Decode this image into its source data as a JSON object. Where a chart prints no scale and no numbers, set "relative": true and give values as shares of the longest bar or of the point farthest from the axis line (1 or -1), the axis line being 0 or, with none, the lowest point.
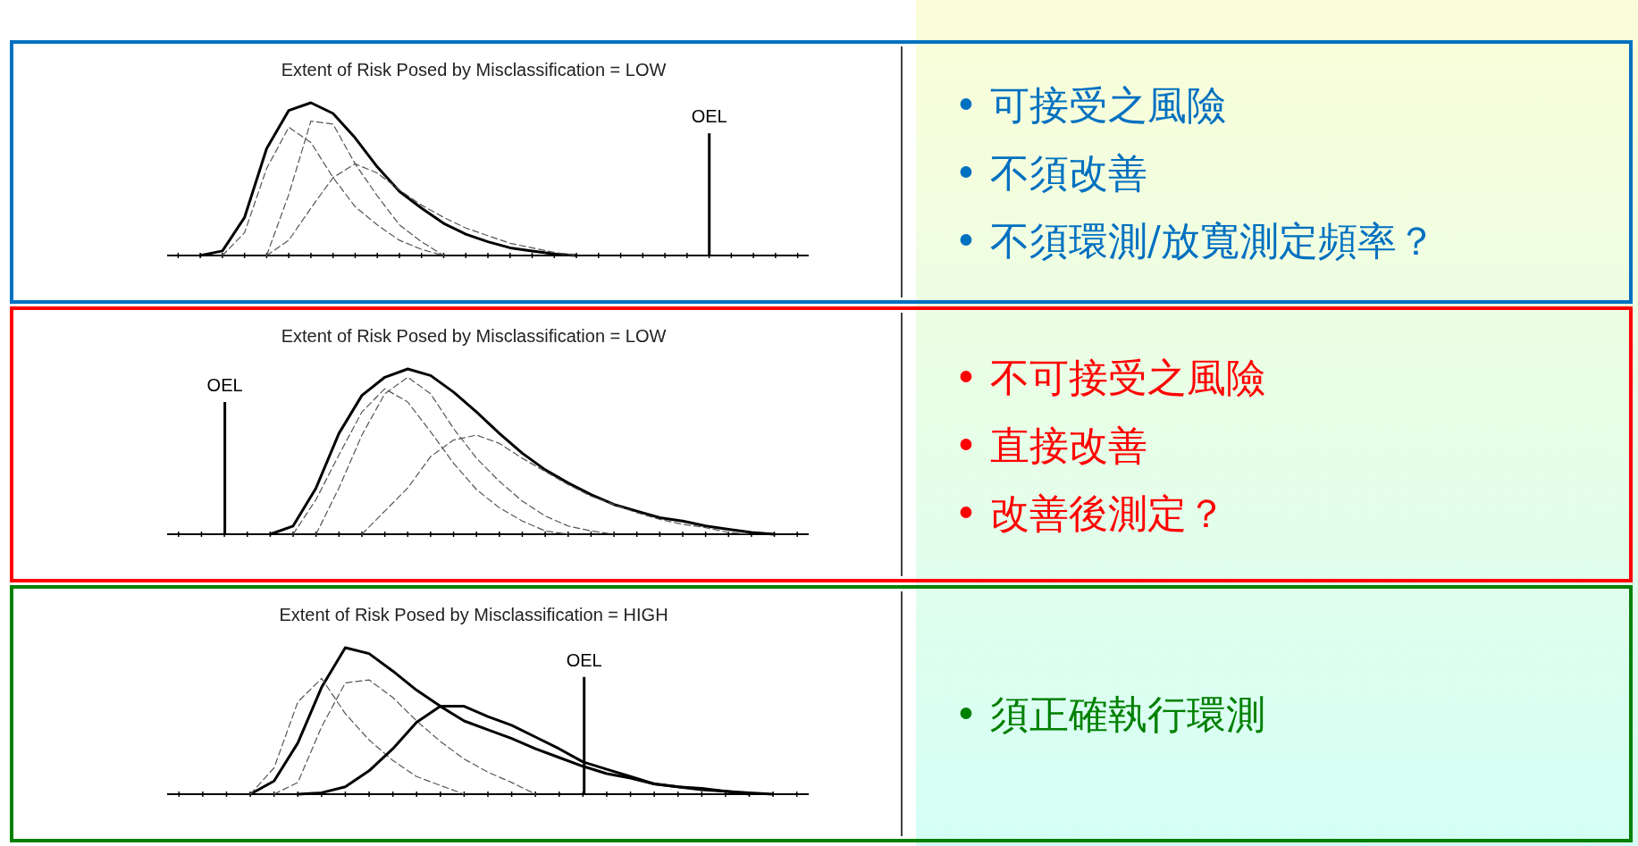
{
  "chart_data": [
    {
      "type": "line",
      "relative": true,
      "title": "Extent of Risk Posed by Misclassification = LOW",
      "categories": [
        null,
        null,
        null,
        null,
        null,
        null,
        null,
        null,
        null,
        null,
        null,
        null,
        null,
        null,
        null,
        null,
        null,
        null,
        null,
        null,
        null,
        null,
        null,
        null,
        null,
        null,
        null,
        null,
        null
      ],
      "series": [
        {
          "color": "#000000",
          "line_style": "solid",
          "values": [
            null,
            0,
            0.03,
            0.25,
            0.7,
            0.95,
            1,
            0.93,
            0.77,
            0.58,
            0.42,
            0.31,
            0.21,
            0.14,
            0.09,
            0.05,
            0.03,
            0.01,
            0,
            null,
            null,
            null,
            null,
            null,
            null,
            null,
            null,
            null,
            null
          ]
        },
        {
          "color": "#555555",
          "line_style": "dashed",
          "values": [
            null,
            null,
            0,
            0.15,
            0.57,
            0.84,
            0.74,
            0.51,
            0.32,
            0.2,
            0.1,
            0.04,
            0,
            null,
            null,
            null,
            null,
            null,
            null,
            null,
            null,
            null,
            null,
            null,
            null,
            null,
            null,
            null,
            null
          ]
        },
        {
          "color": "#555555",
          "line_style": "dashed",
          "values": [
            null,
            null,
            null,
            null,
            0,
            0.4,
            0.88,
            0.86,
            0.6,
            0.39,
            0.2,
            0.09,
            0,
            null,
            null,
            null,
            null,
            null,
            null,
            null,
            null,
            null,
            null,
            null,
            null,
            null,
            null,
            null,
            null
          ]
        },
        {
          "color": "#555555",
          "line_style": "dashed",
          "values": [
            null,
            null,
            null,
            null,
            0,
            0.1,
            0.31,
            0.51,
            0.6,
            0.54,
            0.43,
            0.33,
            0.25,
            0.18,
            0.13,
            0.08,
            0.05,
            0.02,
            0,
            null,
            null,
            null,
            null,
            null,
            null,
            null,
            null,
            null,
            null
          ]
        }
      ],
      "annotations": [
        "OEL"
      ]
    },
    {
      "type": "other",
      "color": "#0070c0",
      "annotations": [
        "• 可接受之風險",
        "• 不須改善",
        "• 不須環測/放寬測定頻率？"
      ]
    },
    {
      "type": "line",
      "relative": true,
      "title": "Extent of Risk Posed by Misclassification = LOW",
      "categories": [
        null,
        null,
        null,
        null,
        null,
        null,
        null,
        null,
        null,
        null,
        null,
        null,
        null,
        null,
        null,
        null,
        null,
        null,
        null,
        null,
        null,
        null,
        null,
        null,
        null,
        null,
        null,
        null
      ],
      "series": [
        {
          "color": "#000000",
          "line_style": "solid",
          "values": [
            null,
            null,
            null,
            null,
            0,
            0.05,
            0.28,
            0.61,
            0.84,
            0.95,
            1,
            0.96,
            0.86,
            0.74,
            0.61,
            0.49,
            0.39,
            0.31,
            0.24,
            0.18,
            0.14,
            0.1,
            0.08,
            0.05,
            0.03,
            0.01,
            0,
            null
          ]
        },
        {
          "color": "#555555",
          "line_style": "dashed",
          "values": [
            null,
            null,
            null,
            null,
            null,
            0,
            0.21,
            0.48,
            0.74,
            0.88,
            0.8,
            0.62,
            0.43,
            0.27,
            0.16,
            0.08,
            0.02,
            0,
            null,
            null,
            null,
            null,
            null,
            null,
            null,
            null,
            null,
            null
          ]
        },
        {
          "color": "#555555",
          "line_style": "dashed",
          "values": [
            null,
            null,
            null,
            null,
            null,
            null,
            0,
            0.28,
            0.6,
            0.85,
            0.95,
            0.85,
            0.64,
            0.46,
            0.32,
            0.2,
            0.11,
            0.05,
            0.02,
            0,
            null,
            null,
            null,
            null,
            null,
            null,
            null,
            null
          ]
        },
        {
          "color": "#555555",
          "line_style": "dashed",
          "values": [
            null,
            null,
            null,
            null,
            null,
            null,
            null,
            null,
            0,
            0.14,
            0.28,
            0.47,
            0.57,
            0.6,
            0.55,
            0.46,
            0.38,
            0.3,
            0.23,
            0.18,
            0.13,
            0.09,
            0.06,
            0.04,
            0.01,
            0,
            null,
            null
          ]
        }
      ],
      "annotations": [
        "OEL"
      ]
    },
    {
      "type": "other",
      "color": "#ff0000",
      "annotations": [
        "• 不可接受之風險",
        "• 直接改善",
        "• 改善後測定？"
      ]
    },
    {
      "type": "line",
      "relative": true,
      "title": "Extent of Risk Posed by Misclassification = HIGH",
      "categories": [
        null,
        null,
        null,
        null,
        null,
        null,
        null,
        null,
        null,
        null,
        null,
        null,
        null,
        null,
        null,
        null,
        null,
        null,
        null,
        null,
        null,
        null,
        null,
        null,
        null,
        null,
        null
      ],
      "series": [
        {
          "color": "#000000",
          "line_style": "solid",
          "values": [
            null,
            null,
            null,
            0,
            0.09,
            0.35,
            0.73,
            1,
            0.96,
            0.84,
            0.71,
            0.6,
            0.5,
            0.44,
            0.38,
            0.31,
            0.25,
            0.19,
            0.14,
            0.11,
            0.07,
            0.05,
            0.03,
            0.02,
            0.01,
            0,
            null
          ]
        },
        {
          "color": "#555555",
          "line_style": "dashed",
          "values": [
            null,
            null,
            null,
            0,
            0.18,
            0.63,
            0.79,
            0.55,
            0.37,
            0.23,
            0.12,
            0.06,
            0,
            null,
            null,
            null,
            null,
            null,
            null,
            null,
            null,
            null,
            null,
            null,
            null,
            null,
            null
          ]
        },
        {
          "color": "#555555",
          "line_style": "dashed",
          "values": [
            null,
            null,
            null,
            null,
            0,
            0.08,
            0.46,
            0.76,
            0.78,
            0.66,
            0.5,
            0.36,
            0.24,
            0.15,
            0.08,
            0,
            null,
            null,
            null,
            null,
            null,
            null,
            null,
            null,
            null,
            null,
            null
          ]
        },
        {
          "color": "#000000",
          "line_style": "solid",
          "values": [
            null,
            null,
            null,
            null,
            null,
            0,
            0.01,
            0.05,
            0.16,
            0.31,
            0.49,
            0.6,
            0.6,
            0.53,
            0.47,
            0.39,
            0.31,
            0.22,
            0.17,
            0.12,
            0.07,
            0.05,
            0.04,
            0.02,
            0,
            null,
            null
          ]
        }
      ],
      "annotations": [
        "OEL"
      ]
    },
    {
      "type": "other",
      "color": "#008000",
      "annotations": [
        "• 須正確執行環測"
      ]
    }
  ]
}
